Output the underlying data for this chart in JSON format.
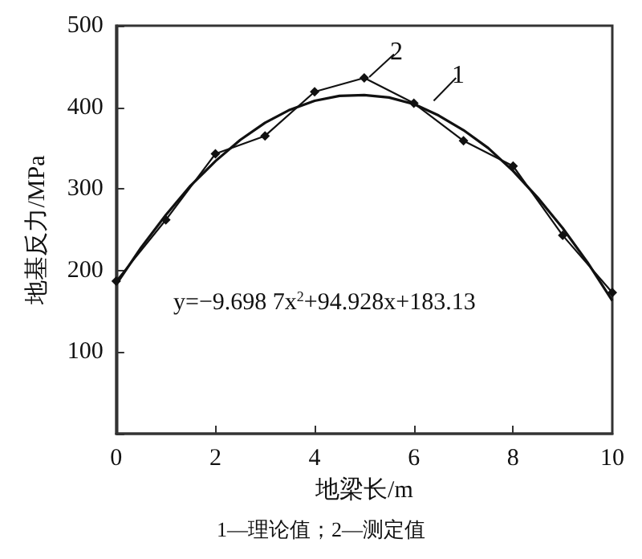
{
  "chart_data": {
    "type": "line",
    "xlabel": "地梁长/m",
    "ylabel": "地基反力/MPa",
    "xlim": [
      0,
      10
    ],
    "xticks": [
      0,
      2,
      4,
      6,
      8,
      10
    ],
    "ylim": [
      0,
      500
    ],
    "yticks": [
      {
        "value": 0,
        "label": null
      },
      100,
      200,
      300,
      400,
      500
    ],
    "grid": false,
    "legend": "top",
    "series": [
      {
        "name": "1",
        "color": "#111111",
        "marker": "none",
        "x": [
          0,
          0.5,
          1,
          1.5,
          2,
          2.5,
          3,
          3.5,
          4,
          4.5,
          5,
          5.5,
          6,
          6.5,
          7,
          7.5,
          8,
          8.5,
          9,
          9.5,
          10
        ],
        "values": [
          183,
          228,
          268,
          304,
          334,
          360,
          381,
          397,
          408,
          414,
          415,
          412,
          404,
          390,
          372,
          350,
          322,
          289,
          252,
          210,
          163
        ]
      },
      {
        "name": "2",
        "color": "#111111",
        "marker": "diamond",
        "x": [
          0,
          1,
          2,
          3,
          4,
          5,
          6,
          7,
          8,
          9,
          10
        ],
        "values": [
          187,
          262,
          343,
          365,
          419,
          436,
          405,
          359,
          328,
          243,
          173
        ]
      }
    ],
    "annotations": [
      "y=−9.698 7x$^{2}$+94.928x+183.13",
      "1—理论值；2—测定值"
    ]
  }
}
